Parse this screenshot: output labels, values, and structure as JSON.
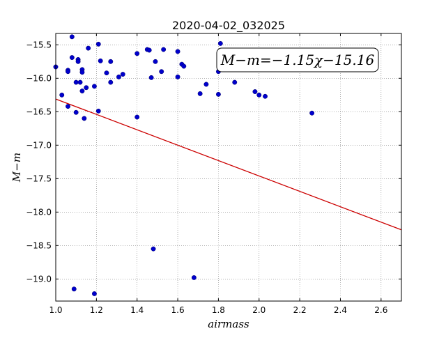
{
  "chart_data": {
    "type": "scatter",
    "title": "2020-04-02_032025",
    "xlabel": "airmass",
    "ylabel": "M−m",
    "xlim": [
      1.0,
      2.7
    ],
    "ylim": [
      -19.33,
      -15.33
    ],
    "y_inverted": true,
    "grid": true,
    "x_ticks": [
      "1.0",
      "1.2",
      "1.4",
      "1.6",
      "1.8",
      "2.0",
      "2.2",
      "2.4",
      "2.6"
    ],
    "y_ticks": [
      "−15.5",
      "−16.0",
      "−16.5",
      "−17.0",
      "−17.5",
      "−18.0",
      "−18.5",
      "−19.0"
    ],
    "annotation": "M−m=−1.15χ−15.16",
    "colors": {
      "points": "#0000cc",
      "fit_line": "#cc0000",
      "grid": "#808080"
    },
    "series": [
      {
        "type": "scatter",
        "points": [
          [
            1.0,
            -15.83
          ],
          [
            1.03,
            -16.25
          ],
          [
            1.06,
            -15.88
          ],
          [
            1.06,
            -15.9
          ],
          [
            1.06,
            -16.42
          ],
          [
            1.08,
            -15.38
          ],
          [
            1.08,
            -15.69
          ],
          [
            1.09,
            -19.15
          ],
          [
            1.1,
            -16.06
          ],
          [
            1.1,
            -16.51
          ],
          [
            1.11,
            -15.72
          ],
          [
            1.11,
            -15.75
          ],
          [
            1.12,
            -16.06
          ],
          [
            1.13,
            -15.87
          ],
          [
            1.13,
            -15.91
          ],
          [
            1.13,
            -16.19
          ],
          [
            1.14,
            -16.6
          ],
          [
            1.15,
            -16.14
          ],
          [
            1.16,
            -15.55
          ],
          [
            1.19,
            -16.12
          ],
          [
            1.19,
            -19.22
          ],
          [
            1.21,
            -15.49
          ],
          [
            1.21,
            -16.49
          ],
          [
            1.22,
            -15.74
          ],
          [
            1.25,
            -15.92
          ],
          [
            1.27,
            -15.75
          ],
          [
            1.27,
            -16.06
          ],
          [
            1.31,
            -15.98
          ],
          [
            1.33,
            -15.94
          ],
          [
            1.4,
            -16.58
          ],
          [
            1.4,
            -15.63
          ],
          [
            1.45,
            -15.57
          ],
          [
            1.46,
            -15.58
          ],
          [
            1.47,
            -15.99
          ],
          [
            1.48,
            -18.55
          ],
          [
            1.49,
            -15.75
          ],
          [
            1.52,
            -15.9
          ],
          [
            1.53,
            -15.57
          ],
          [
            1.6,
            -15.98
          ],
          [
            1.6,
            -15.6
          ],
          [
            1.62,
            -15.79
          ],
          [
            1.63,
            -15.82
          ],
          [
            1.68,
            -18.98
          ],
          [
            1.71,
            -16.23
          ],
          [
            1.74,
            -16.09
          ],
          [
            1.8,
            -15.9
          ],
          [
            1.8,
            -16.24
          ],
          [
            1.81,
            -15.48
          ],
          [
            1.88,
            -16.06
          ],
          [
            1.98,
            -16.2
          ],
          [
            2.0,
            -16.25
          ],
          [
            2.03,
            -16.27
          ],
          [
            2.26,
            -16.52
          ]
        ]
      },
      {
        "type": "line",
        "name": "fit",
        "slope": -1.15,
        "intercept": -15.16
      }
    ]
  }
}
